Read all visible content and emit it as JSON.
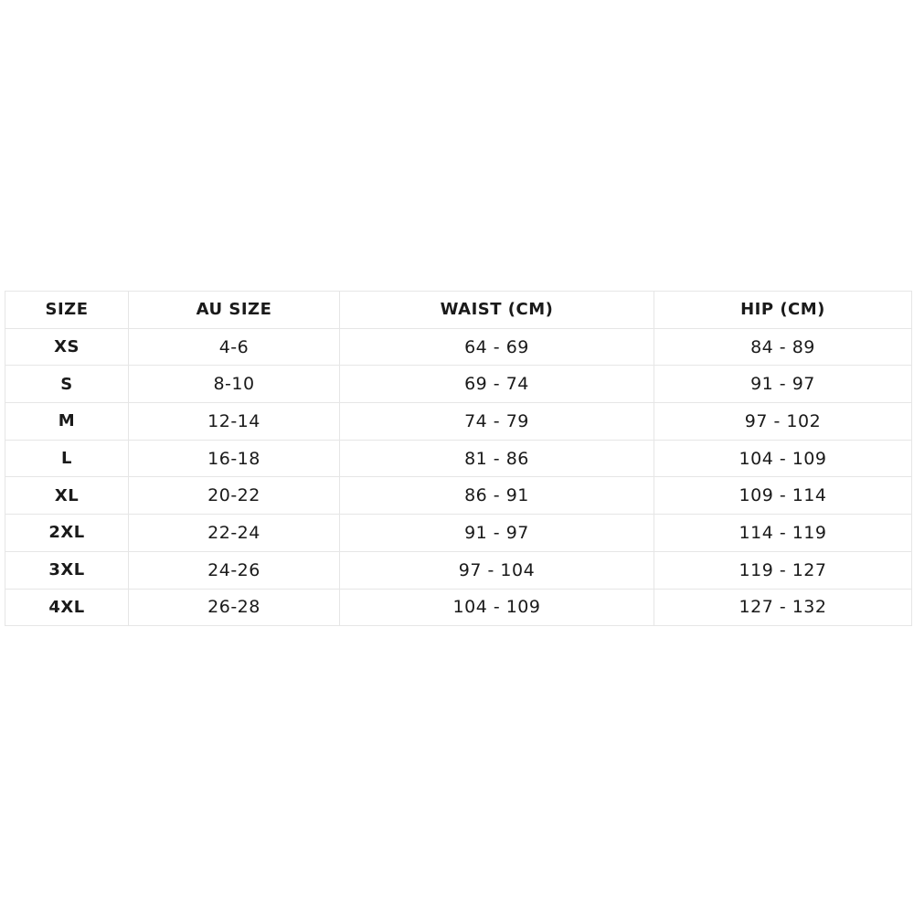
{
  "table": {
    "headers": [
      "SIZE",
      "AU SIZE",
      "WAIST (CM)",
      "HIP (CM)"
    ],
    "rows": [
      [
        "XS",
        "4-6",
        "64 - 69",
        "84 - 89"
      ],
      [
        "S",
        "8-10",
        "69 - 74",
        "91 - 97"
      ],
      [
        "M",
        "12-14",
        "74 - 79",
        "97 - 102"
      ],
      [
        "L",
        "16-18",
        "81 - 86",
        "104 - 109"
      ],
      [
        "XL",
        "20-22",
        "86 - 91",
        "109 - 114"
      ],
      [
        "2XL",
        "22-24",
        "91 - 97",
        "114 - 119"
      ],
      [
        "3XL",
        "24-26",
        "97 - 104",
        "119 - 127"
      ],
      [
        "4XL",
        "26-28",
        "104 - 109",
        "127 - 132"
      ]
    ]
  }
}
